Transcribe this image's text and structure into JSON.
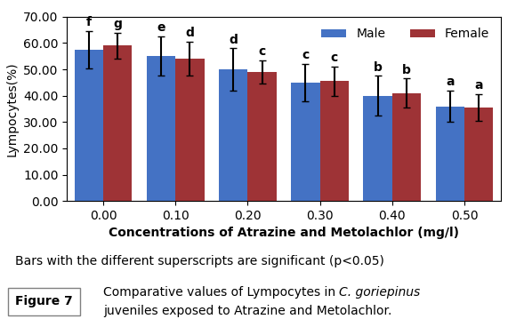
{
  "chart_data": {
    "type": "bar",
    "categories": [
      "0.00",
      "0.10",
      "0.20",
      "0.30",
      "0.40",
      "0.50"
    ],
    "series": [
      {
        "name": "Male",
        "color": "#4472C4",
        "values": [
          57.5,
          55.0,
          50.0,
          45.0,
          40.0,
          36.0
        ],
        "errors": [
          7.0,
          7.5,
          8.0,
          7.0,
          7.5,
          6.0
        ],
        "letters": [
          "f",
          "e",
          "d",
          "c",
          "b",
          "a"
        ]
      },
      {
        "name": "Female",
        "color": "#9E3336",
        "values": [
          59.0,
          54.0,
          49.0,
          45.5,
          41.0,
          35.5
        ],
        "errors": [
          5.0,
          6.5,
          4.5,
          5.5,
          5.5,
          5.0
        ],
        "letters": [
          "g",
          "d",
          "c",
          "c",
          "b",
          "a"
        ]
      }
    ],
    "xlabel": "Concentrations of Atrazine and Metolachlor (mg/l)",
    "ylabel": "Lympocytes(%)",
    "ylim": [
      0,
      70
    ],
    "yticks": [
      {
        "value": 0,
        "label": "0.00"
      },
      {
        "value": 10,
        "label": "10.00"
      },
      {
        "value": 20,
        "label": "20.00"
      },
      {
        "value": 30,
        "label": "30.00"
      },
      {
        "value": 40,
        "label": "40.00"
      },
      {
        "value": 50,
        "label": "50.00"
      },
      {
        "value": 60,
        "label": "60.00"
      },
      {
        "value": 70,
        "label": "70.00"
      }
    ],
    "legend": "upper right",
    "grid": false,
    "note": "Bars with the different superscripts are significant (p<0.05)",
    "figure_label": "Figure 7",
    "caption": [
      {
        "text": "Comparative values of Lympocytes in",
        "italic": false
      },
      {
        "text": "C. goriepinus",
        "italic": true
      },
      {
        "text": "juveniles exposed to Atrazine and Metolachlor.",
        "italic": false
      }
    ]
  }
}
